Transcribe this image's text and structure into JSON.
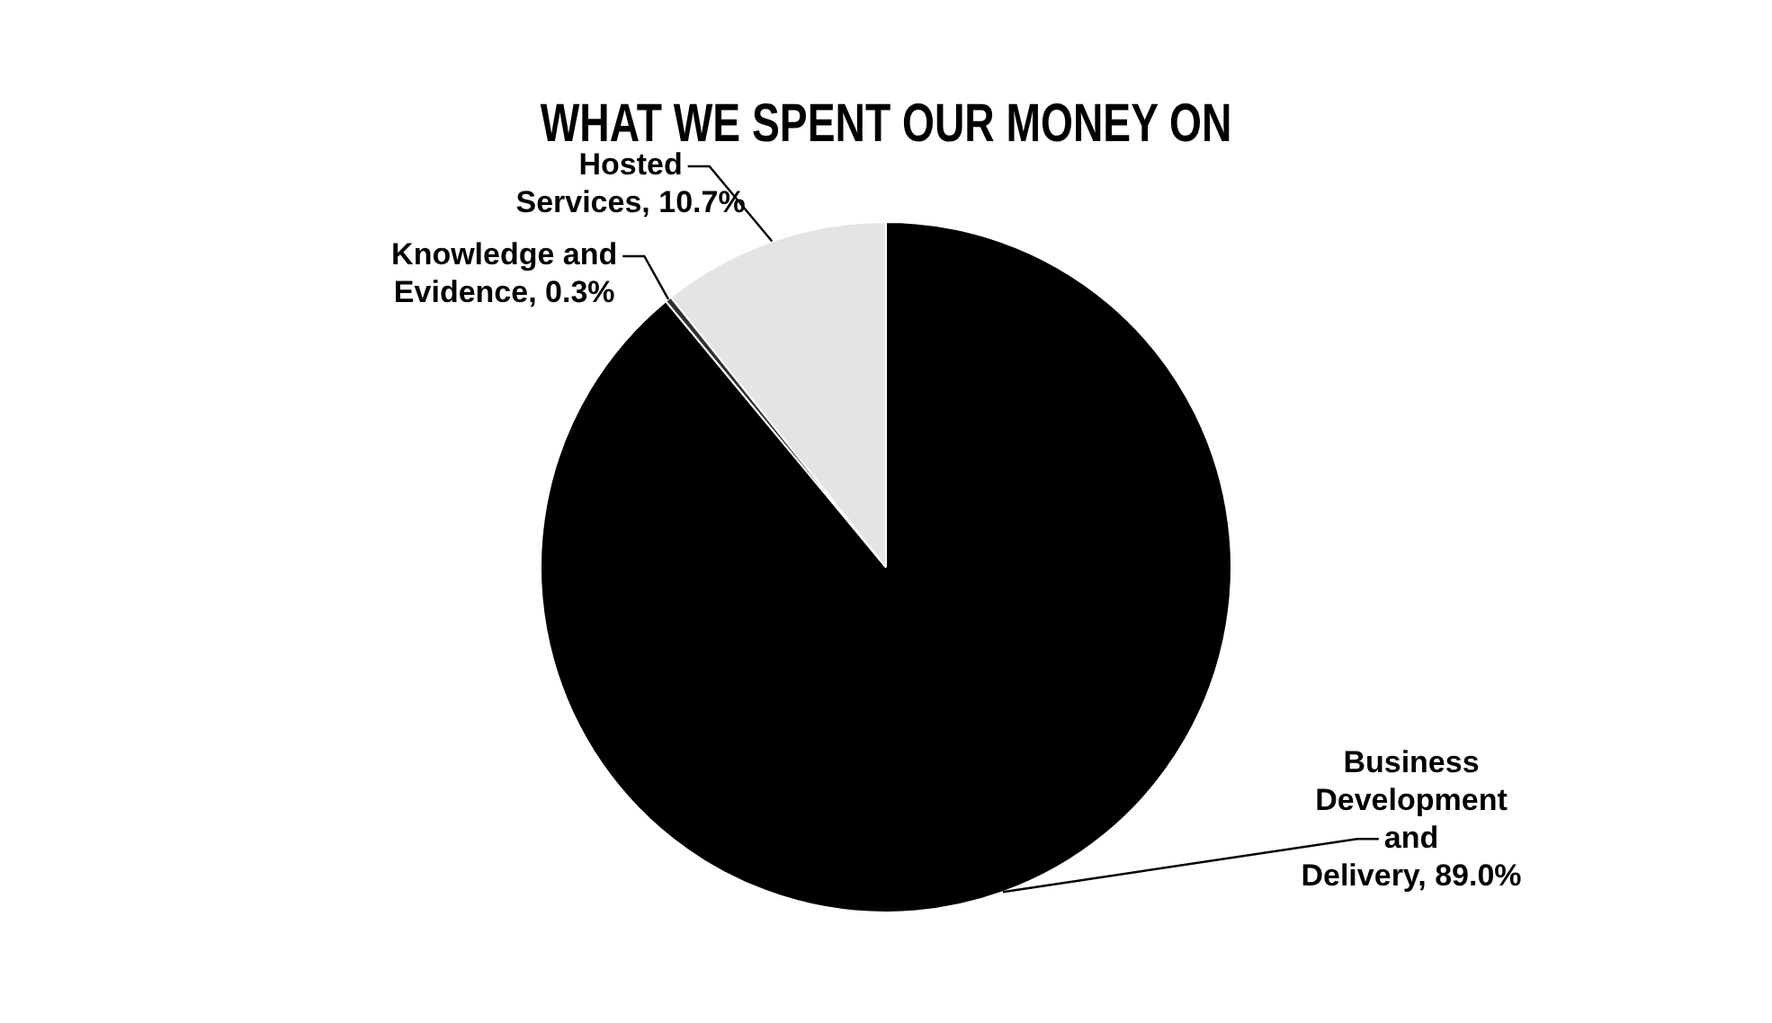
{
  "chart_data": {
    "type": "pie",
    "title": "WHAT WE SPENT OUR MONEY ON",
    "categories": [
      "Business Development and Delivery",
      "Knowledge and Evidence",
      "Hosted Services"
    ],
    "values": [
      89.0,
      0.3,
      10.7
    ],
    "colors": [
      "#000000",
      "#303030",
      "#e4e4e4"
    ],
    "value_labels": [
      "89.0%",
      "0.3%",
      "10.7%"
    ],
    "legend": false
  }
}
